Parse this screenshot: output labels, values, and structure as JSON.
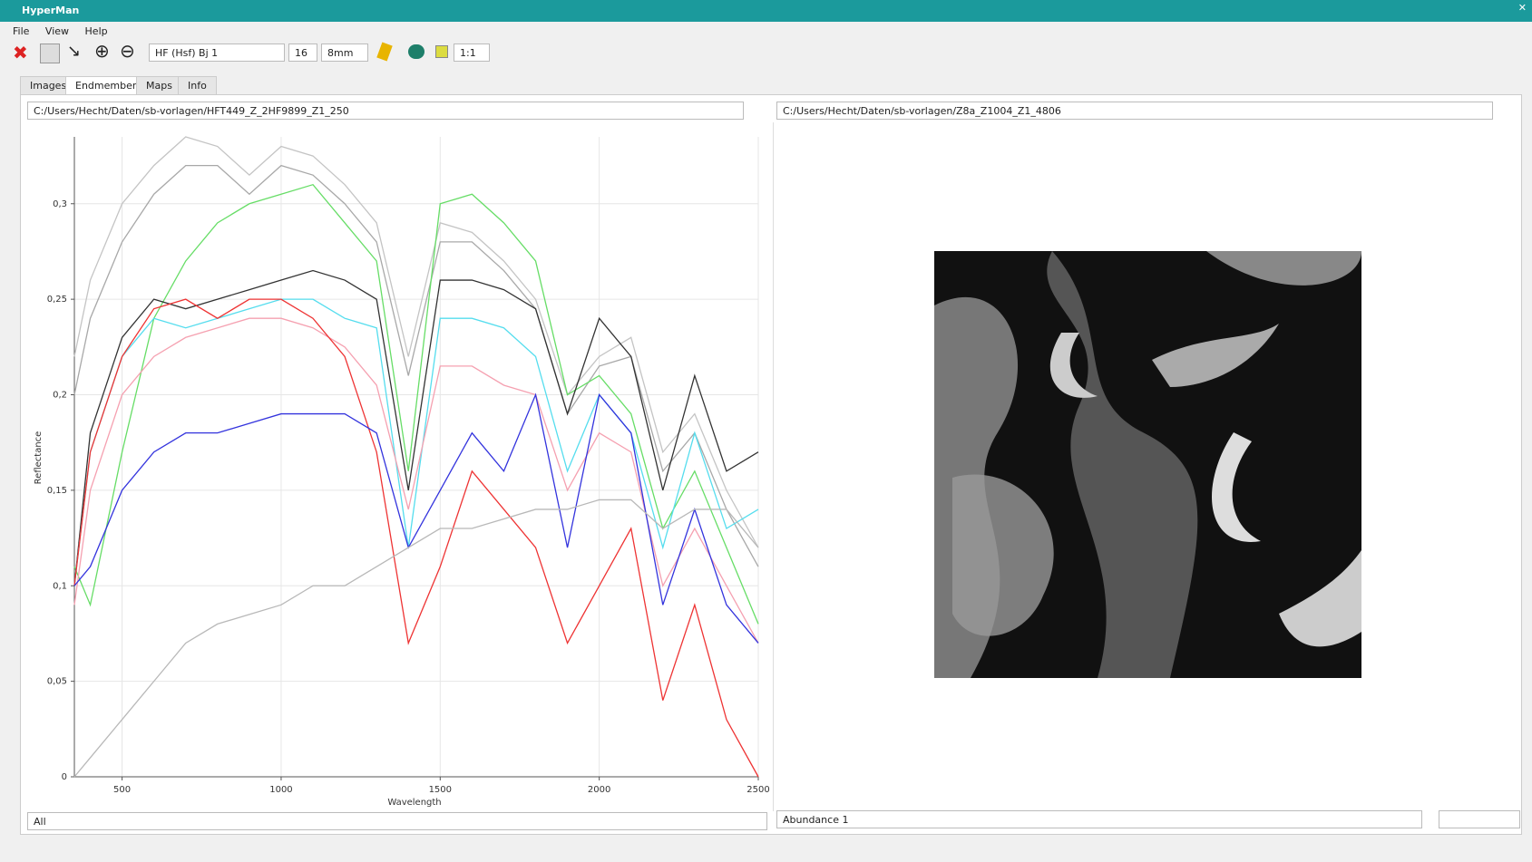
{
  "window": {
    "title": "HyperMan"
  },
  "menu": [
    "File",
    "View",
    "Help"
  ],
  "toolbar": {
    "dataset": "HF (Hsf) Bj 1",
    "size": "16",
    "unit": "8mm",
    "zoom": "1:1"
  },
  "tabs": [
    "Images",
    "Endmembers",
    "Maps",
    "Info"
  ],
  "left_path": "C:/Users/Hecht/Daten/sb-vorlagen/HFT449_Z_2HF9899_Z1_250",
  "right_path": "C:/Users/Hecht/Daten/sb-vorlagen/Z8a_Z1004_Z1_4806",
  "left_footer": "All",
  "right_footer": "Abundance 1",
  "chart_data": {
    "type": "line",
    "x_label": "Wavelength",
    "y_label": "Reflectance",
    "x": [
      350,
      400,
      500,
      600,
      700,
      800,
      900,
      1000,
      1100,
      1200,
      1300,
      1400,
      1500,
      1600,
      1700,
      1800,
      1900,
      2000,
      2100,
      2200,
      2300,
      2400,
      2500
    ],
    "xlim": [
      350,
      2500
    ],
    "xticks": [
      500,
      1000,
      1500,
      2000,
      2500
    ],
    "ylim": [
      0,
      0.335
    ],
    "yticks": [
      0,
      {
        "value": 0.05,
        "label": "0,05"
      },
      {
        "value": 0.1,
        "label": "0,1"
      },
      {
        "value": 0.15,
        "label": "0,15"
      },
      {
        "value": 0.2,
        "label": "0,2"
      },
      {
        "value": 0.25,
        "label": "0,25"
      },
      {
        "value": 0.3,
        "label": "0,3"
      }
    ],
    "grid": true,
    "series": [
      {
        "color": "#c4c4c4",
        "values": [
          0.22,
          0.26,
          0.3,
          0.32,
          0.335,
          0.33,
          0.315,
          0.33,
          0.325,
          0.31,
          0.29,
          0.22,
          0.29,
          0.285,
          0.27,
          0.25,
          0.2,
          0.22,
          0.23,
          0.17,
          0.19,
          0.15,
          0.12
        ]
      },
      {
        "color": "#a8a8a8",
        "values": [
          0.2,
          0.24,
          0.28,
          0.305,
          0.32,
          0.32,
          0.305,
          0.32,
          0.315,
          0.3,
          0.28,
          0.21,
          0.28,
          0.28,
          0.265,
          0.245,
          0.19,
          0.215,
          0.22,
          0.16,
          0.18,
          0.14,
          0.11
        ]
      },
      {
        "color": "#66dd66",
        "values": [
          0.11,
          0.09,
          0.17,
          0.24,
          0.27,
          0.29,
          0.3,
          0.305,
          0.31,
          0.29,
          0.27,
          0.16,
          0.3,
          0.305,
          0.29,
          0.27,
          0.2,
          0.21,
          0.19,
          0.13,
          0.16,
          0.12,
          0.08
        ]
      },
      {
        "color": "#333333",
        "values": [
          0.1,
          0.18,
          0.23,
          0.25,
          0.245,
          0.25,
          0.255,
          0.26,
          0.265,
          0.26,
          0.25,
          0.15,
          0.26,
          0.26,
          0.255,
          0.245,
          0.19,
          0.24,
          0.22,
          0.15,
          0.21,
          0.16,
          0.17
        ]
      },
      {
        "color": "#55ddee",
        "values": [
          0.1,
          0.17,
          0.22,
          0.24,
          0.235,
          0.24,
          0.245,
          0.25,
          0.25,
          0.24,
          0.235,
          0.12,
          0.24,
          0.24,
          0.235,
          0.22,
          0.16,
          0.2,
          0.18,
          0.12,
          0.18,
          0.13,
          0.14
        ]
      },
      {
        "color": "#f5a0b0",
        "values": [
          0.09,
          0.15,
          0.2,
          0.22,
          0.23,
          0.235,
          0.24,
          0.24,
          0.235,
          0.225,
          0.205,
          0.14,
          0.215,
          0.215,
          0.205,
          0.2,
          0.15,
          0.18,
          0.17,
          0.1,
          0.13,
          0.1,
          0.07
        ]
      },
      {
        "color": "#ee3333",
        "values": [
          0.1,
          0.17,
          0.22,
          0.245,
          0.25,
          0.24,
          0.25,
          0.25,
          0.24,
          0.22,
          0.17,
          0.07,
          0.11,
          0.16,
          0.14,
          0.12,
          0.07,
          0.1,
          0.13,
          0.04,
          0.09,
          0.03,
          0.0
        ]
      },
      {
        "color": "#3333dd",
        "values": [
          0.1,
          0.11,
          0.15,
          0.17,
          0.18,
          0.18,
          0.185,
          0.19,
          0.19,
          0.19,
          0.18,
          0.12,
          0.15,
          0.18,
          0.16,
          0.2,
          0.12,
          0.2,
          0.18,
          0.09,
          0.14,
          0.09,
          0.07
        ]
      },
      {
        "color": "#b8b8b8",
        "values": [
          0.0,
          0.01,
          0.03,
          0.05,
          0.07,
          0.08,
          0.085,
          0.09,
          0.1,
          0.1,
          0.11,
          0.12,
          0.13,
          0.13,
          0.135,
          0.14,
          0.14,
          0.145,
          0.145,
          0.13,
          0.14,
          0.14,
          0.12
        ]
      }
    ]
  }
}
